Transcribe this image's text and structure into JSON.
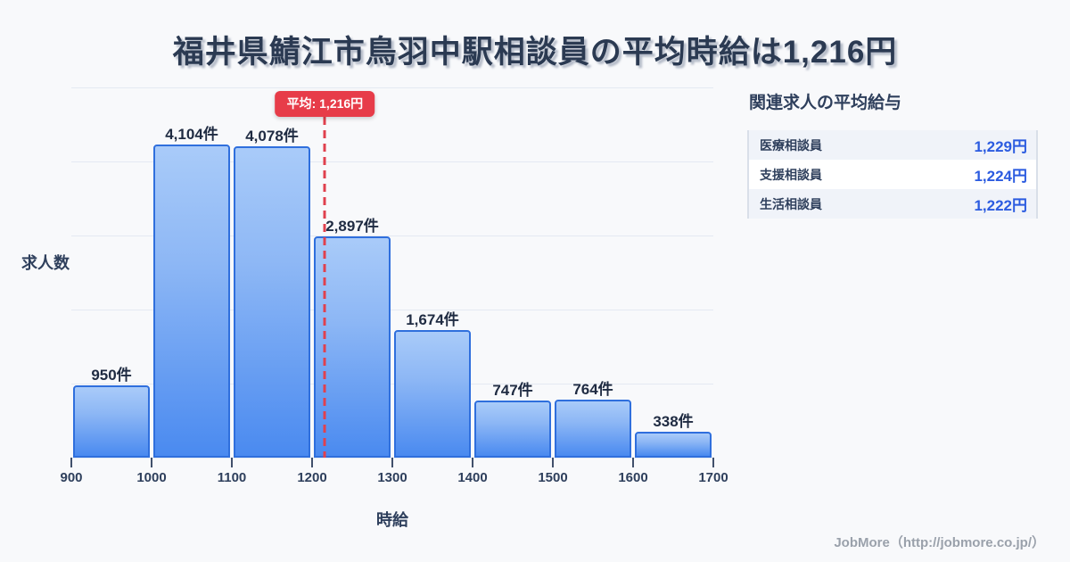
{
  "page": {
    "title": "福井県鯖江市鳥羽中駅相談員の平均時給は1,216円",
    "footer": "JobMore（http://jobmore.co.jp/）"
  },
  "chart_data": {
    "type": "bar",
    "title": "福井県鯖江市鳥羽中駅相談員の平均時給は1,216円",
    "xlabel": "時給",
    "ylabel": "求人数",
    "unit": "件",
    "bins": [
      900,
      1000,
      1100,
      1200,
      1300,
      1400,
      1500,
      1600,
      1700
    ],
    "values": [
      950,
      4104,
      4078,
      2897,
      1674,
      747,
      764,
      338
    ],
    "bar_labels": [
      "950件",
      "4,104件",
      "4,078件",
      "2,897件",
      "1,674件",
      "747件",
      "764件",
      "338件"
    ],
    "x_ticks": [
      900,
      1000,
      1100,
      1200,
      1300,
      1400,
      1500,
      1600,
      1700
    ],
    "xlim": [
      900,
      1700
    ],
    "y_axis_max_display": 4850,
    "grid_divisions": 5,
    "grid_on": true,
    "legend": "none",
    "mean": {
      "value": 1216,
      "label": "平均: 1,216円"
    }
  },
  "side_panel": {
    "title": "関連求人の平均給与",
    "rows": [
      {
        "label": "医療相談員",
        "value": "1,229円"
      },
      {
        "label": "支援相談員",
        "value": "1,224円"
      },
      {
        "label": "生活相談員",
        "value": "1,222円"
      }
    ]
  },
  "theme": {
    "background": "#f8f9fb",
    "accent_red": "#e73c49",
    "line_red": "#e0414e",
    "bar_border": "#2f6fdd",
    "bar_fill_top": "#a9cbf9",
    "bar_fill_bottom": "#4a8af0",
    "value_blue": "#2b5be0",
    "text_dark": "#2e3f5c",
    "grid": "#e4e9f2",
    "footer_gray": "#9aa1ab"
  }
}
